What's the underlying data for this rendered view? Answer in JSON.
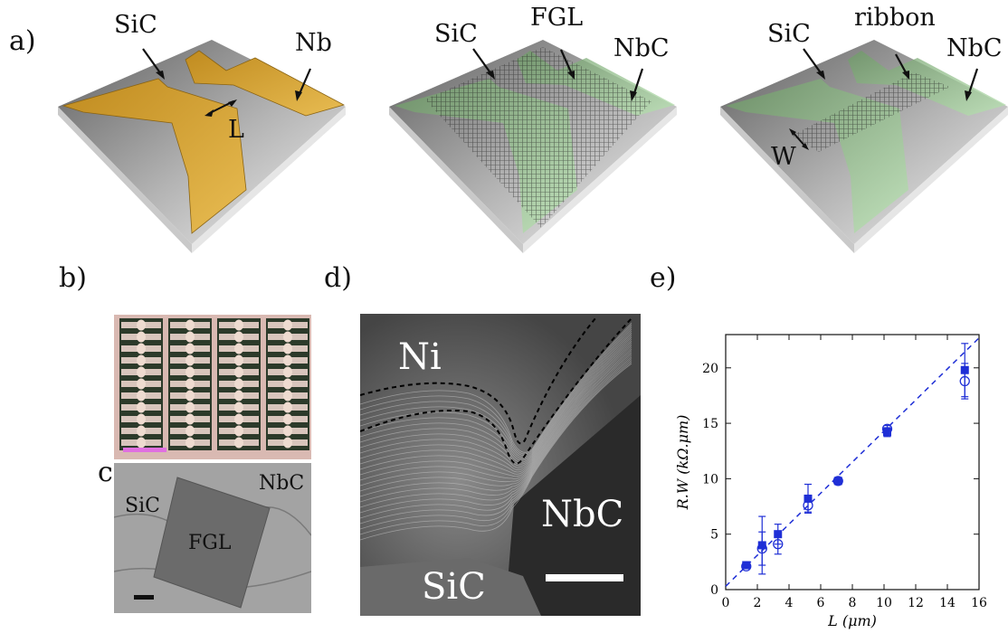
{
  "panels": {
    "a": "a)",
    "b": "b)",
    "c": "c",
    "d": "d)",
    "e": "e)"
  },
  "diagram_a1": {
    "sic": "SiC",
    "metal": "Nb",
    "gap": "L"
  },
  "diagram_a2": {
    "sic": "SiC",
    "layer": "FGL",
    "carbide": "NbC"
  },
  "diagram_a3": {
    "sic": "SiC",
    "ribbon": "ribbon",
    "carbide": "NbC",
    "width": "W"
  },
  "panel_c": {
    "sic": "SiC",
    "nbc": "NbC",
    "fgl": "FGL"
  },
  "panel_d": {
    "ni": "Ni",
    "nbc": "NbC",
    "sic": "SiC"
  },
  "colors": {
    "nb": "#d4a63a",
    "nbc": "#9fd39a",
    "substrate": "#9a9a9a",
    "data": "#1f2fd6",
    "scalebar_b": "#e070e0"
  },
  "chart_data": {
    "type": "scatter",
    "xlabel": "L (μm)",
    "ylabel": "R.W (kΩ.μm)",
    "xlim": [
      0,
      16
    ],
    "ylim": [
      0,
      23
    ],
    "xticks": [
      0,
      2,
      4,
      6,
      8,
      10,
      12,
      14,
      16
    ],
    "yticks": [
      0,
      5,
      10,
      15,
      20
    ],
    "series": [
      {
        "marker": "filled-square",
        "x": [
          1.3,
          2.3,
          3.3,
          5.2,
          7.1,
          10.2,
          15.1
        ],
        "y": [
          2.2,
          4.0,
          5.0,
          8.2,
          9.8,
          14.2,
          19.8
        ],
        "err": [
          0.2,
          2.6,
          0.9,
          1.3,
          0.3,
          0.4,
          2.4
        ]
      },
      {
        "marker": "open-circle",
        "x": [
          1.3,
          2.3,
          3.3,
          5.2,
          7.1,
          10.2,
          15.1
        ],
        "y": [
          2.1,
          3.7,
          4.1,
          7.6,
          9.8,
          14.5,
          18.8
        ],
        "err": [
          0.2,
          1.5,
          0.9,
          0.6,
          0.3,
          0.3,
          1.6
        ]
      }
    ],
    "fit": {
      "style": "dashed",
      "x": [
        0,
        16
      ],
      "y": [
        0.3,
        22.7
      ]
    }
  }
}
